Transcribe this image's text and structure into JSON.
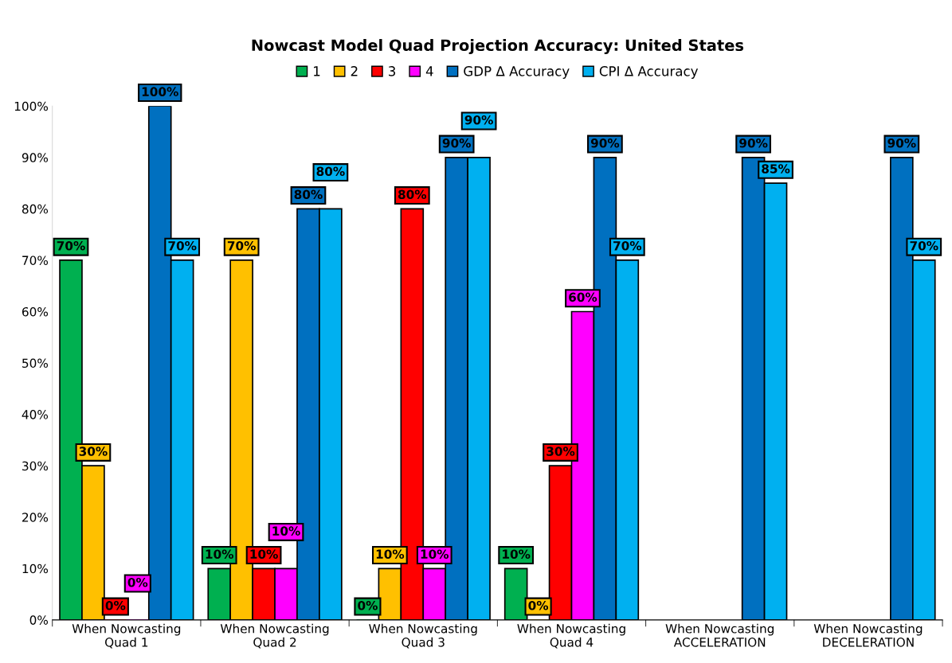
{
  "chart_data": {
    "type": "bar",
    "title": "Nowcast Model Quad Projection Accuracy: United States",
    "categories": [
      "When Nowcasting\nQuad 1",
      "When Nowcasting\nQuad 2",
      "When Nowcasting\nQuad 3",
      "When Nowcasting\nQuad 4",
      "When Nowcasting\nACCELERATION",
      "When Nowcasting\nDECELERATION"
    ],
    "series": [
      {
        "name": "1",
        "color": "#00b050",
        "values": [
          70,
          10,
          0,
          10,
          null,
          null
        ],
        "value_labels": [
          "70%",
          "10%",
          "0%",
          "10%",
          null,
          null
        ]
      },
      {
        "name": "2",
        "color": "#ffc000",
        "values": [
          30,
          70,
          10,
          0,
          null,
          null
        ],
        "value_labels": [
          "30%",
          "70%",
          "10%",
          "0%",
          null,
          null
        ]
      },
      {
        "name": "3",
        "color": "#ff0000",
        "values": [
          0,
          10,
          80,
          30,
          null,
          null
        ],
        "value_labels": [
          "0%",
          "10%",
          "80%",
          "30%",
          null,
          null
        ]
      },
      {
        "name": "4",
        "color": "#ff00ff",
        "values": [
          0,
          10,
          10,
          60,
          null,
          null
        ],
        "value_labels": [
          "0%",
          "10%",
          "10%",
          "60%",
          null,
          null
        ]
      },
      {
        "name": "GDP Δ Accuracy",
        "color": "#0070c0",
        "values": [
          100,
          80,
          90,
          90,
          90,
          90
        ],
        "value_labels": [
          "100%",
          "80%",
          "90%",
          "90%",
          "90%",
          "90%"
        ]
      },
      {
        "name": "CPI Δ Accuracy",
        "color": "#00b0f0",
        "values": [
          70,
          80,
          90,
          70,
          85,
          70
        ],
        "value_labels": [
          "70%",
          "80%",
          "90%",
          "70%",
          "85%",
          "70%"
        ]
      }
    ],
    "ylim": [
      0,
      100
    ],
    "yticks": [
      {
        "value": 0,
        "label": "0%"
      },
      {
        "value": 10,
        "label": "10%"
      },
      {
        "value": 20,
        "label": "20%"
      },
      {
        "value": 30,
        "label": "30%"
      },
      {
        "value": 40,
        "label": "40%"
      },
      {
        "value": 50,
        "label": "50%"
      },
      {
        "value": 60,
        "label": "60%"
      },
      {
        "value": 70,
        "label": "70%"
      },
      {
        "value": 80,
        "label": "80%"
      },
      {
        "value": 90,
        "label": "90%"
      },
      {
        "value": 100,
        "label": "100%"
      }
    ],
    "grid": false,
    "legend": "top"
  }
}
